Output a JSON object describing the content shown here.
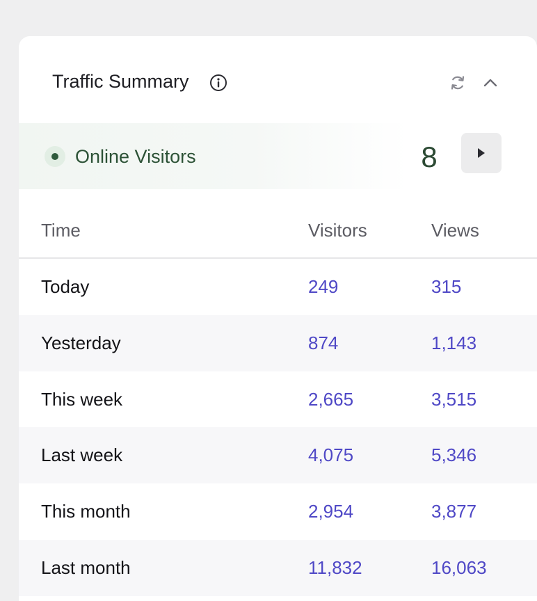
{
  "widget": {
    "title": "Traffic Summary",
    "icons": {
      "info": "info-icon",
      "refresh": "refresh-icon",
      "collapse": "chevron-up-icon"
    }
  },
  "online": {
    "label": "Online Visitors",
    "count": "8",
    "status_color": "#2f5a3c",
    "action_icon": "play-icon"
  },
  "table": {
    "columns": [
      "Time",
      "Visitors",
      "Views"
    ],
    "rows": [
      {
        "label": "Today",
        "visitors": "249",
        "views": "315"
      },
      {
        "label": "Yesterday",
        "visitors": "874",
        "views": "1,143"
      },
      {
        "label": "This week",
        "visitors": "2,665",
        "views": "3,515"
      },
      {
        "label": "Last week",
        "visitors": "4,075",
        "views": "5,346"
      },
      {
        "label": "This month",
        "visitors": "2,954",
        "views": "3,877"
      },
      {
        "label": "Last month",
        "visitors": "11,832",
        "views": "16,063"
      }
    ]
  },
  "colors": {
    "accent_link": "#4f48c6",
    "online_text": "#2c5236",
    "alt_row": "#f7f7f9"
  }
}
